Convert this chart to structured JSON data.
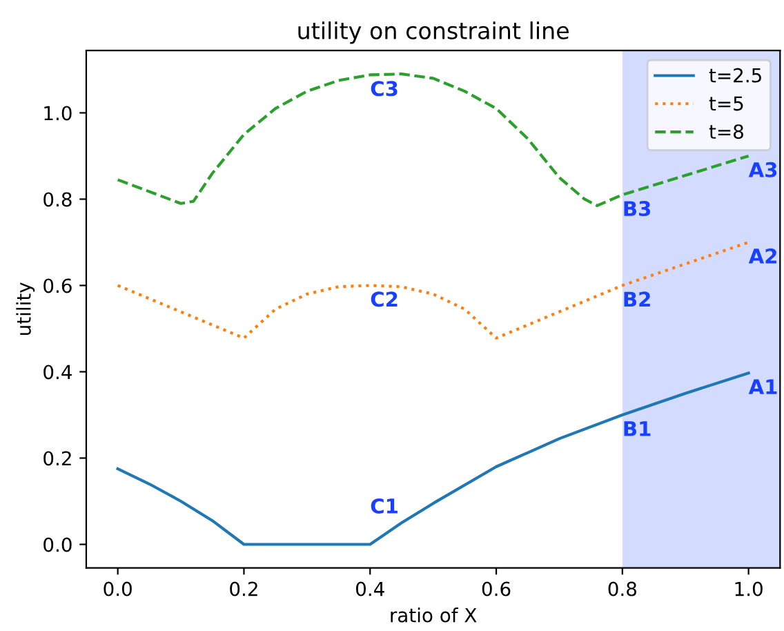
{
  "chart_data": {
    "type": "line",
    "title": "utility on constraint line",
    "xlabel": "ratio of X",
    "ylabel": "utility",
    "xlim": [
      -0.05,
      1.05
    ],
    "ylim": [
      -0.0545,
      1.1445
    ],
    "xticks": [
      {
        "value": 0,
        "label": "0.0"
      },
      {
        "value": 0.2,
        "label": "0.2"
      },
      {
        "value": 0.4,
        "label": "0.4"
      },
      {
        "value": 0.6,
        "label": "0.6"
      },
      {
        "value": 0.8,
        "label": "0.8"
      },
      {
        "value": 1.0,
        "label": "1.0"
      }
    ],
    "yticks": [
      {
        "value": 0,
        "label": "0.0"
      },
      {
        "value": 0.2,
        "label": "0.2"
      },
      {
        "value": 0.4,
        "label": "0.4"
      },
      {
        "value": 0.6,
        "label": "0.6"
      },
      {
        "value": 0.8,
        "label": "0.8"
      },
      {
        "value": 1.0,
        "label": "1.0"
      }
    ],
    "legend": "top right",
    "grid": false,
    "bands": [
      {
        "axis": "x",
        "from": 0.8,
        "to": 1.05,
        "color": "#d3dbff"
      }
    ],
    "series": [
      {
        "name": "t=2.5",
        "color": "#1f77b4",
        "line_style": "solid",
        "x": [
          0,
          0.05,
          0.1,
          0.15,
          0.2,
          0.4,
          0.45,
          0.5,
          0.6,
          0.7,
          0.8,
          0.9,
          1.0
        ],
        "values": [
          0.175,
          0.14,
          0.1,
          0.055,
          0,
          0,
          0.05,
          0.095,
          0.18,
          0.245,
          0.3,
          0.35,
          0.397
        ]
      },
      {
        "name": "t=5",
        "color": "#ff7f0e",
        "line_style": "dotted",
        "x": [
          0,
          0.2,
          0.25,
          0.3,
          0.35,
          0.4,
          0.45,
          0.5,
          0.55,
          0.6,
          0.8,
          1.0
        ],
        "values": [
          0.6,
          0.478,
          0.545,
          0.58,
          0.597,
          0.6,
          0.597,
          0.58,
          0.545,
          0.478,
          0.6,
          0.7
        ]
      },
      {
        "name": "t=8",
        "color": "#2ca02c",
        "line_style": "dashed",
        "x": [
          0,
          0.1,
          0.12,
          0.15,
          0.2,
          0.25,
          0.3,
          0.35,
          0.4,
          0.45,
          0.5,
          0.55,
          0.6,
          0.65,
          0.7,
          0.74,
          0.76,
          0.8,
          0.9,
          1.0
        ],
        "values": [
          0.845,
          0.79,
          0.795,
          0.86,
          0.95,
          1.01,
          1.05,
          1.075,
          1.088,
          1.09,
          1.08,
          1.05,
          1.01,
          0.94,
          0.85,
          0.8,
          0.785,
          0.81,
          0.855,
          0.9
        ]
      }
    ],
    "annotations": [
      {
        "text": "C1",
        "x": 0.4,
        "y": 0
      },
      {
        "text": "C2",
        "x": 0.4,
        "y": 0.6
      },
      {
        "text": "C3",
        "x": 0.4,
        "y": 1.088
      },
      {
        "text": "B1",
        "x": 0.8,
        "y": 0.3
      },
      {
        "text": "B2",
        "x": 0.8,
        "y": 0.6
      },
      {
        "text": "B3",
        "x": 0.8,
        "y": 0.81
      },
      {
        "text": "A1",
        "x": 1.0,
        "y": 0.397
      },
      {
        "text": "A2",
        "x": 1.0,
        "y": 0.7
      },
      {
        "text": "A3",
        "x": 1.0,
        "y": 0.9
      }
    ]
  }
}
